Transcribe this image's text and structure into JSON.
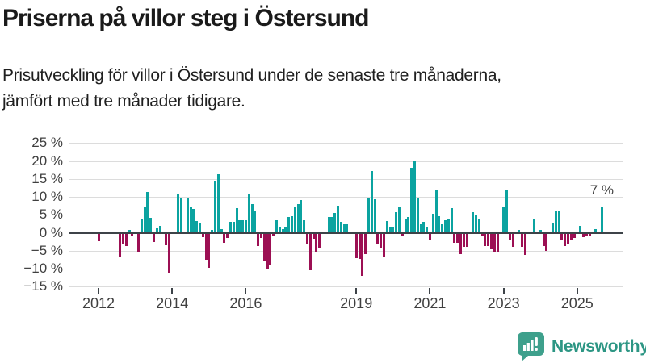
{
  "header": {
    "title": "Priserna på villor steg i Östersund",
    "subtitle_line1": "Prisutveckling för villor i Östersund under de senaste tre månaderna,",
    "subtitle_line2": "jämfört med tre månader tidigare."
  },
  "chart_data": {
    "type": "bar",
    "title": "Priserna på villor steg i Östersund",
    "subtitle": "Prisutveckling för villor i Östersund under de senaste tre månaderna, jämfört med tre månader tidigare.",
    "unit": "%",
    "frequency": "monthly",
    "x_start": "2012-01",
    "x_end": "2025-09",
    "ylim": [
      -15,
      25
    ],
    "grid": "horizontal",
    "y_ticks": [
      {
        "v": 25,
        "label": "25 %"
      },
      {
        "v": 20,
        "label": "20 %"
      },
      {
        "v": 15,
        "label": "15 %"
      },
      {
        "v": 10,
        "label": "10 %"
      },
      {
        "v": 5,
        "label": "5 %"
      },
      {
        "v": 0,
        "label": "0 %"
      },
      {
        "v": -5,
        "label": "−5 %"
      },
      {
        "v": -10,
        "label": "−10 %"
      },
      {
        "v": -15,
        "label": "−15 %"
      }
    ],
    "x_tick_years": [
      2012,
      2014,
      2016,
      2019,
      2021,
      2023,
      2025
    ],
    "last_value_annotation": "7 %",
    "colors": {
      "positive": "#0ba3a0",
      "negative": "#9c0f53"
    },
    "values": [
      -2.4,
      0,
      0,
      0,
      0,
      0,
      0,
      -6.8,
      -3.1,
      -3.7,
      0.7,
      -1.0,
      0,
      -5.3,
      3.9,
      7.1,
      11.3,
      4.1,
      -2.5,
      1.3,
      1.9,
      0,
      -3.5,
      -11.4,
      0,
      0,
      11.0,
      9.6,
      0,
      9.5,
      7.4,
      6.7,
      3.2,
      2.7,
      -1.3,
      -7.5,
      -9.8,
      0.7,
      14.3,
      16.3,
      1.0,
      -2.7,
      -1.5,
      3.0,
      3.0,
      6.9,
      3.6,
      3.4,
      3.4,
      11.0,
      7.9,
      5.9,
      -3.7,
      -1.5,
      -7.7,
      -10.1,
      -9.2,
      -0.7,
      3.6,
      1.7,
      1.0,
      1.7,
      4.4,
      4.7,
      7.1,
      7.9,
      9.1,
      3.5,
      -3.0,
      -10.5,
      -1.7,
      -5.2,
      -4.1,
      0,
      0,
      4.3,
      4.3,
      5.5,
      7.5,
      3.0,
      2.3,
      2.3,
      0,
      0,
      -7.0,
      -7.2,
      -11.9,
      -5.9,
      9.6,
      17.3,
      9.3,
      -3.0,
      -4.2,
      -6.8,
      3.2,
      1.5,
      1.5,
      5.8,
      7.0,
      -1.0,
      3.7,
      4.5,
      18.0,
      20.0,
      9.5,
      2.3,
      3.0,
      1.5,
      -1.9,
      5.4,
      11.8,
      4.7,
      2.3,
      3.4,
      3.7,
      6.8,
      -2.7,
      -2.7,
      -5.9,
      -4.0,
      -4.0,
      0,
      5.8,
      5.0,
      3.9,
      -1.0,
      -3.7,
      -3.7,
      -4.6,
      -5.3,
      -5.3,
      0,
      7.1,
      12.1,
      -2.0,
      -4.0,
      0,
      0.7,
      -4.0,
      -6.1,
      0,
      0,
      3.9,
      0,
      0.7,
      -3.7,
      -5.0,
      0,
      2.7,
      5.9,
      5.9,
      -2.0,
      -3.7,
      -3.1,
      -2.0,
      -1.5,
      0,
      1.9,
      -1.3,
      -1.0,
      -1.0,
      0,
      1.0,
      0,
      7.0
    ]
  },
  "footer": {
    "brand": "Newsworthy",
    "logo_icon": "bar-chart-speech-bubble",
    "brand_color": "#2d9684",
    "icon_color": "#3ea08c"
  }
}
